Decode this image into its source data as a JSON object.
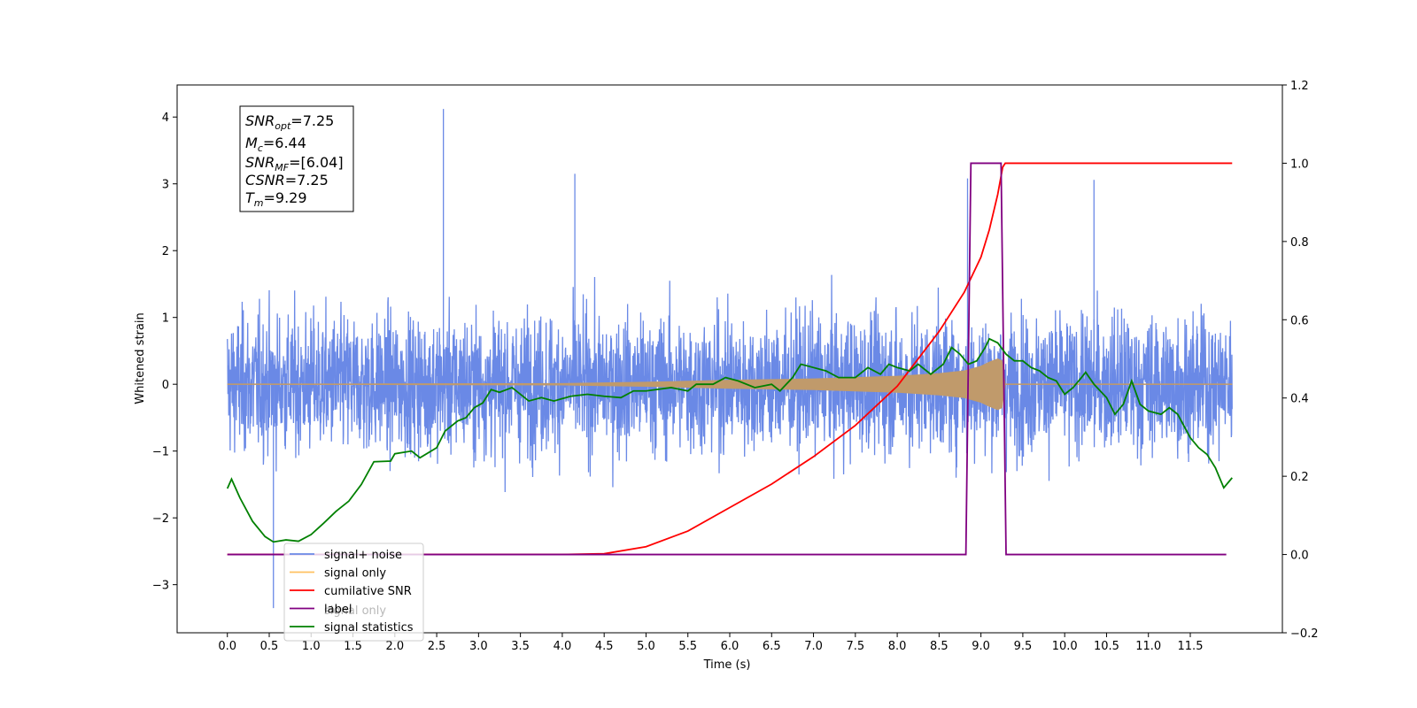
{
  "chart_data": {
    "type": "line",
    "title": "",
    "xlabel": "Time (s)",
    "ylabel": "Whitened strain",
    "xlim": [
      -0.6,
      12.6
    ],
    "ylim": [
      -3.72,
      4.48
    ],
    "y2lim": [
      -0.2,
      1.2
    ],
    "grid": false,
    "legend_position": "bottom-left",
    "x_ticks": [
      "0.0",
      "0.5",
      "1.0",
      "1.5",
      "2.0",
      "2.5",
      "3.0",
      "3.5",
      "4.0",
      "4.5",
      "5.0",
      "5.5",
      "6.0",
      "6.5",
      "7.0",
      "7.5",
      "8.0",
      "8.5",
      "9.0",
      "9.5",
      "10.0",
      "10.5",
      "11.0",
      "11.5"
    ],
    "y_ticks": [
      "−3",
      "−2",
      "−1",
      "0",
      "1",
      "2",
      "3",
      "4"
    ],
    "y2_ticks": [
      "−0.2",
      "0.0",
      "0.2",
      "0.4",
      "0.6",
      "0.8",
      "1.0",
      "1.2"
    ],
    "annotation": {
      "lines": [
        {
          "base": "SNR",
          "sub": "opt",
          "rest": "=7.25"
        },
        {
          "base": "M",
          "sub": "c",
          "rest": "=6.44"
        },
        {
          "base": "SNR",
          "sub": "MF",
          "rest": "=[6.04]"
        },
        {
          "base": "CSNR",
          "sub": "",
          "rest": "=7.25"
        },
        {
          "base": "T",
          "sub": "m",
          "rest": "=9.29"
        }
      ]
    },
    "legend": [
      {
        "label": "signal+ noise",
        "color": "#6a89e6"
      },
      {
        "label": "signal only",
        "color": "#ffc060"
      },
      {
        "label": "cumilative SNR",
        "color": "#ff0000"
      },
      {
        "label": "label",
        "color": "#800080"
      },
      {
        "label": "signal statistics",
        "color": "#008000"
      }
    ],
    "hidden_legend_text": "signal only",
    "noise": {
      "t_range": [
        0.0,
        12.0
      ],
      "typical_band": [
        -1.4,
        1.4
      ],
      "peak_max": 4.12,
      "peak_min": -3.35,
      "color": "#6a89e6"
    },
    "signal_only": {
      "color": "#c09a6b",
      "envelope": [
        [
          0.0,
          0.0
        ],
        [
          4.0,
          0.01
        ],
        [
          5.0,
          0.03
        ],
        [
          6.0,
          0.06
        ],
        [
          7.0,
          0.08
        ],
        [
          7.5,
          0.1
        ],
        [
          8.0,
          0.12
        ],
        [
          8.5,
          0.16
        ],
        [
          8.8,
          0.2
        ],
        [
          9.0,
          0.27
        ],
        [
          9.1,
          0.33
        ],
        [
          9.2,
          0.38
        ],
        [
          9.25,
          0.35
        ],
        [
          9.29,
          0.0
        ],
        [
          12.0,
          0.0
        ]
      ]
    },
    "series": [
      {
        "name": "cumilative SNR",
        "axis": "right",
        "color": "#ff0000",
        "points": [
          [
            0.0,
            0.0
          ],
          [
            4.0,
            0.0
          ],
          [
            4.5,
            0.002
          ],
          [
            5.0,
            0.02
          ],
          [
            5.5,
            0.06
          ],
          [
            6.0,
            0.12
          ],
          [
            6.5,
            0.18
          ],
          [
            7.0,
            0.25
          ],
          [
            7.5,
            0.33
          ],
          [
            8.0,
            0.43
          ],
          [
            8.5,
            0.57
          ],
          [
            8.8,
            0.67
          ],
          [
            9.0,
            0.76
          ],
          [
            9.1,
            0.83
          ],
          [
            9.2,
            0.92
          ],
          [
            9.26,
            0.99
          ],
          [
            9.29,
            1.0
          ],
          [
            12.0,
            1.0
          ]
        ]
      },
      {
        "name": "label",
        "axis": "right",
        "color": "#800080",
        "points": [
          [
            0.0,
            0.0
          ],
          [
            8.82,
            0.0
          ],
          [
            8.88,
            1.0
          ],
          [
            9.24,
            1.0
          ],
          [
            9.3,
            0.0
          ],
          [
            11.93,
            0.0
          ]
        ]
      },
      {
        "name": "signal statistics",
        "axis": "left",
        "color": "#008000",
        "points": [
          [
            0.0,
            -1.56
          ],
          [
            0.05,
            -1.42
          ],
          [
            0.15,
            -1.7
          ],
          [
            0.3,
            -2.05
          ],
          [
            0.45,
            -2.28
          ],
          [
            0.55,
            -2.36
          ],
          [
            0.7,
            -2.33
          ],
          [
            0.85,
            -2.35
          ],
          [
            1.0,
            -2.25
          ],
          [
            1.15,
            -2.08
          ],
          [
            1.3,
            -1.9
          ],
          [
            1.45,
            -1.75
          ],
          [
            1.6,
            -1.5
          ],
          [
            1.75,
            -1.16
          ],
          [
            1.95,
            -1.15
          ],
          [
            2.0,
            -1.04
          ],
          [
            2.2,
            -1.0
          ],
          [
            2.3,
            -1.1
          ],
          [
            2.5,
            -0.95
          ],
          [
            2.6,
            -0.7
          ],
          [
            2.75,
            -0.55
          ],
          [
            2.85,
            -0.5
          ],
          [
            2.95,
            -0.35
          ],
          [
            3.05,
            -0.28
          ],
          [
            3.15,
            -0.08
          ],
          [
            3.25,
            -0.12
          ],
          [
            3.4,
            -0.05
          ],
          [
            3.6,
            -0.25
          ],
          [
            3.75,
            -0.2
          ],
          [
            3.9,
            -0.25
          ],
          [
            4.1,
            -0.18
          ],
          [
            4.3,
            -0.15
          ],
          [
            4.5,
            -0.18
          ],
          [
            4.7,
            -0.2
          ],
          [
            4.85,
            -0.1
          ],
          [
            5.0,
            -0.1
          ],
          [
            5.3,
            -0.05
          ],
          [
            5.5,
            -0.1
          ],
          [
            5.6,
            0.0
          ],
          [
            5.8,
            0.0
          ],
          [
            5.95,
            0.1
          ],
          [
            6.1,
            0.05
          ],
          [
            6.3,
            -0.05
          ],
          [
            6.5,
            0.0
          ],
          [
            6.6,
            -0.1
          ],
          [
            6.75,
            0.1
          ],
          [
            6.85,
            0.3
          ],
          [
            7.0,
            0.25
          ],
          [
            7.15,
            0.2
          ],
          [
            7.3,
            0.1
          ],
          [
            7.5,
            0.1
          ],
          [
            7.65,
            0.25
          ],
          [
            7.8,
            0.15
          ],
          [
            7.9,
            0.3
          ],
          [
            8.0,
            0.25
          ],
          [
            8.15,
            0.2
          ],
          [
            8.25,
            0.3
          ],
          [
            8.4,
            0.15
          ],
          [
            8.55,
            0.3
          ],
          [
            8.65,
            0.55
          ],
          [
            8.75,
            0.45
          ],
          [
            8.85,
            0.3
          ],
          [
            8.95,
            0.35
          ],
          [
            9.05,
            0.55
          ],
          [
            9.1,
            0.68
          ],
          [
            9.2,
            0.62
          ],
          [
            9.3,
            0.45
          ],
          [
            9.4,
            0.35
          ],
          [
            9.5,
            0.35
          ],
          [
            9.6,
            0.25
          ],
          [
            9.7,
            0.2
          ],
          [
            9.8,
            0.1
          ],
          [
            9.9,
            0.05
          ],
          [
            10.0,
            -0.15
          ],
          [
            10.1,
            -0.05
          ],
          [
            10.2,
            0.1
          ],
          [
            10.25,
            0.18
          ],
          [
            10.35,
            0.0
          ],
          [
            10.5,
            -0.2
          ],
          [
            10.6,
            -0.45
          ],
          [
            10.7,
            -0.3
          ],
          [
            10.8,
            0.05
          ],
          [
            10.9,
            -0.3
          ],
          [
            11.0,
            -0.4
          ],
          [
            11.15,
            -0.45
          ],
          [
            11.25,
            -0.35
          ],
          [
            11.35,
            -0.45
          ],
          [
            11.5,
            -0.8
          ],
          [
            11.6,
            -0.95
          ],
          [
            11.7,
            -1.05
          ],
          [
            11.8,
            -1.25
          ],
          [
            11.9,
            -1.55
          ],
          [
            12.0,
            -1.4
          ]
        ]
      }
    ]
  }
}
